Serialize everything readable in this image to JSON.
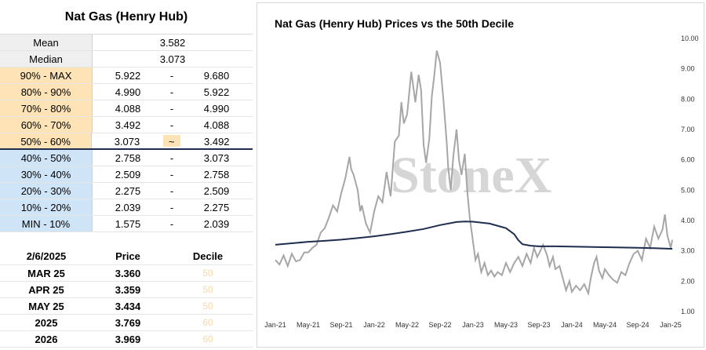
{
  "stats": {
    "title": "Nat Gas (Henry Hub)",
    "mean_label": "Mean",
    "mean_value": "3.582",
    "median_label": "Median",
    "median_value": "3.073",
    "deciles": [
      {
        "label": "90% - MAX",
        "low": "5.922",
        "sep": "-",
        "high": "9.680",
        "tone": "hi"
      },
      {
        "label": "80% - 90%",
        "low": "4.990",
        "sep": "-",
        "high": "5.922",
        "tone": "hi"
      },
      {
        "label": "70% - 80%",
        "low": "4.088",
        "sep": "-",
        "high": "4.990",
        "tone": "hi"
      },
      {
        "label": "60% - 70%",
        "low": "3.492",
        "sep": "-",
        "high": "4.088",
        "tone": "hi"
      },
      {
        "label": "50% - 60%",
        "low": "3.073",
        "sep": "~",
        "high": "3.492",
        "tone": "hi"
      },
      {
        "label": "40% - 50%",
        "low": "2.758",
        "sep": "-",
        "high": "3.073",
        "tone": "lo"
      },
      {
        "label": "30% - 40%",
        "low": "2.509",
        "sep": "-",
        "high": "2.758",
        "tone": "lo"
      },
      {
        "label": "20% - 30%",
        "low": "2.275",
        "sep": "-",
        "high": "2.509",
        "tone": "lo"
      },
      {
        "label": "10% - 20%",
        "low": "2.039",
        "sep": "-",
        "high": "2.275",
        "tone": "lo"
      },
      {
        "label": "MIN - 10%",
        "low": "1.575",
        "sep": "-",
        "high": "2.039",
        "tone": "lo"
      }
    ]
  },
  "prices": {
    "date": "2/6/2025",
    "price_header": "Price",
    "decile_header": "Decile",
    "rows": [
      {
        "contract": "MAR 25",
        "price": "3.360",
        "decile": "50"
      },
      {
        "contract": "APR 25",
        "price": "3.359",
        "decile": "50"
      },
      {
        "contract": "MAY 25",
        "price": "3.434",
        "decile": "50"
      },
      {
        "contract": "2025",
        "price": "3.769",
        "decile": "60"
      },
      {
        "contract": "2026",
        "price": "3.969",
        "decile": "60"
      }
    ]
  },
  "colors": {
    "price_line": "#a6a6a6",
    "decile_line": "#1f2d4e",
    "hi_fill": "#fde3b5",
    "lo_fill": "#cfe4f7"
  },
  "chart_data": {
    "type": "line",
    "title": "Nat Gas (Henry Hub) Prices vs the 50th Decile",
    "watermark": "StoneX",
    "ylim": [
      1.0,
      10.0
    ],
    "y_ticks": [
      "1.00",
      "2.00",
      "3.00",
      "4.00",
      "5.00",
      "6.00",
      "7.00",
      "8.00",
      "9.00",
      "10.00"
    ],
    "x_ticks": [
      "Jan-21",
      "May-21",
      "Sep-21",
      "Jan-22",
      "May-22",
      "Sep-22",
      "Jan-23",
      "May-23",
      "Sep-23",
      "Jan-24",
      "May-24",
      "Sep-24",
      "Jan-25"
    ],
    "series": [
      {
        "role": "price",
        "points": [
          [
            0,
            2.7
          ],
          [
            0.5,
            2.55
          ],
          [
            1,
            2.85
          ],
          [
            1.5,
            2.5
          ],
          [
            2,
            2.9
          ],
          [
            2.5,
            2.65
          ],
          [
            3,
            2.7
          ],
          [
            3.5,
            2.95
          ],
          [
            4,
            2.95
          ],
          [
            4.5,
            3.1
          ],
          [
            5,
            3.2
          ],
          [
            5.5,
            3.6
          ],
          [
            6,
            3.75
          ],
          [
            6.5,
            4.1
          ],
          [
            7,
            4.5
          ],
          [
            7.5,
            4.3
          ],
          [
            8,
            4.9
          ],
          [
            8.5,
            5.4
          ],
          [
            9,
            6.1
          ],
          [
            9.2,
            5.7
          ],
          [
            9.5,
            5.5
          ],
          [
            10,
            5.0
          ],
          [
            10.3,
            4.3
          ],
          [
            10.5,
            4.5
          ],
          [
            11,
            3.9
          ],
          [
            11.5,
            3.6
          ],
          [
            12,
            4.3
          ],
          [
            12.5,
            4.8
          ],
          [
            13,
            4.6
          ],
          [
            13.5,
            5.6
          ],
          [
            14,
            4.8
          ],
          [
            14.5,
            6.6
          ],
          [
            15,
            6.8
          ],
          [
            15.3,
            7.9
          ],
          [
            15.6,
            7.2
          ],
          [
            16,
            7.5
          ],
          [
            16.5,
            8.9
          ],
          [
            17,
            7.9
          ],
          [
            17.4,
            8.8
          ],
          [
            17.7,
            8.3
          ],
          [
            18,
            6.5
          ],
          [
            18.3,
            5.9
          ],
          [
            18.7,
            6.7
          ],
          [
            19,
            8.1
          ],
          [
            19.3,
            8.8
          ],
          [
            19.6,
            9.6
          ],
          [
            20,
            9.2
          ],
          [
            20.4,
            8.0
          ],
          [
            20.8,
            6.6
          ],
          [
            21,
            5.7
          ],
          [
            21.3,
            5.0
          ],
          [
            21.6,
            6.1
          ],
          [
            22,
            7.0
          ],
          [
            22.3,
            6.0
          ],
          [
            22.6,
            5.5
          ],
          [
            23,
            6.2
          ],
          [
            23.3,
            5.0
          ],
          [
            23.6,
            4.1
          ],
          [
            24,
            3.3
          ],
          [
            24.3,
            2.7
          ],
          [
            24.6,
            2.9
          ],
          [
            25,
            2.3
          ],
          [
            25.4,
            2.6
          ],
          [
            25.8,
            2.2
          ],
          [
            26.2,
            2.35
          ],
          [
            26.6,
            2.15
          ],
          [
            27,
            2.3
          ],
          [
            27.5,
            2.2
          ],
          [
            28,
            2.6
          ],
          [
            28.5,
            2.3
          ],
          [
            29,
            2.6
          ],
          [
            29.5,
            2.8
          ],
          [
            30,
            2.5
          ],
          [
            30.5,
            2.9
          ],
          [
            31,
            2.6
          ],
          [
            31.4,
            3.1
          ],
          [
            31.8,
            2.8
          ],
          [
            32,
            2.9
          ],
          [
            32.5,
            3.2
          ],
          [
            33,
            2.85
          ],
          [
            33.3,
            2.5
          ],
          [
            33.7,
            2.8
          ],
          [
            34,
            2.4
          ],
          [
            34.5,
            2.5
          ],
          [
            35,
            2.0
          ],
          [
            35.3,
            1.7
          ],
          [
            35.7,
            2.0
          ],
          [
            36,
            1.65
          ],
          [
            36.5,
            1.85
          ],
          [
            37,
            1.7
          ],
          [
            37.5,
            1.9
          ],
          [
            38,
            1.6
          ],
          [
            38.3,
            2.1
          ],
          [
            38.7,
            2.6
          ],
          [
            39,
            2.8
          ],
          [
            39.3,
            2.35
          ],
          [
            39.7,
            2.1
          ],
          [
            40,
            2.4
          ],
          [
            40.5,
            2.2
          ],
          [
            41,
            2.05
          ],
          [
            41.5,
            1.95
          ],
          [
            42,
            2.3
          ],
          [
            42.5,
            2.2
          ],
          [
            43,
            2.6
          ],
          [
            43.5,
            2.9
          ],
          [
            44,
            3.0
          ],
          [
            44.5,
            2.7
          ],
          [
            45,
            3.4
          ],
          [
            45.5,
            3.1
          ],
          [
            46,
            3.8
          ],
          [
            46.5,
            3.4
          ],
          [
            47,
            3.7
          ],
          [
            47.3,
            4.2
          ],
          [
            47.6,
            3.5
          ],
          [
            48,
            3.1
          ],
          [
            48.2,
            3.36
          ]
        ]
      },
      {
        "role": "decile",
        "points": [
          [
            0,
            3.2
          ],
          [
            2,
            3.25
          ],
          [
            4,
            3.3
          ],
          [
            6,
            3.33
          ],
          [
            8,
            3.37
          ],
          [
            10,
            3.42
          ],
          [
            12,
            3.48
          ],
          [
            14,
            3.55
          ],
          [
            16,
            3.63
          ],
          [
            18,
            3.72
          ],
          [
            20,
            3.85
          ],
          [
            22,
            3.95
          ],
          [
            23,
            3.97
          ],
          [
            24,
            3.96
          ],
          [
            26,
            3.9
          ],
          [
            28,
            3.75
          ],
          [
            29,
            3.55
          ],
          [
            29.5,
            3.35
          ],
          [
            30,
            3.22
          ],
          [
            31,
            3.17
          ],
          [
            32,
            3.15
          ],
          [
            34,
            3.15
          ],
          [
            36,
            3.14
          ],
          [
            38,
            3.13
          ],
          [
            40,
            3.12
          ],
          [
            42,
            3.11
          ],
          [
            44,
            3.1
          ],
          [
            46,
            3.09
          ],
          [
            48,
            3.07
          ],
          [
            48.2,
            3.07
          ]
        ]
      }
    ]
  }
}
